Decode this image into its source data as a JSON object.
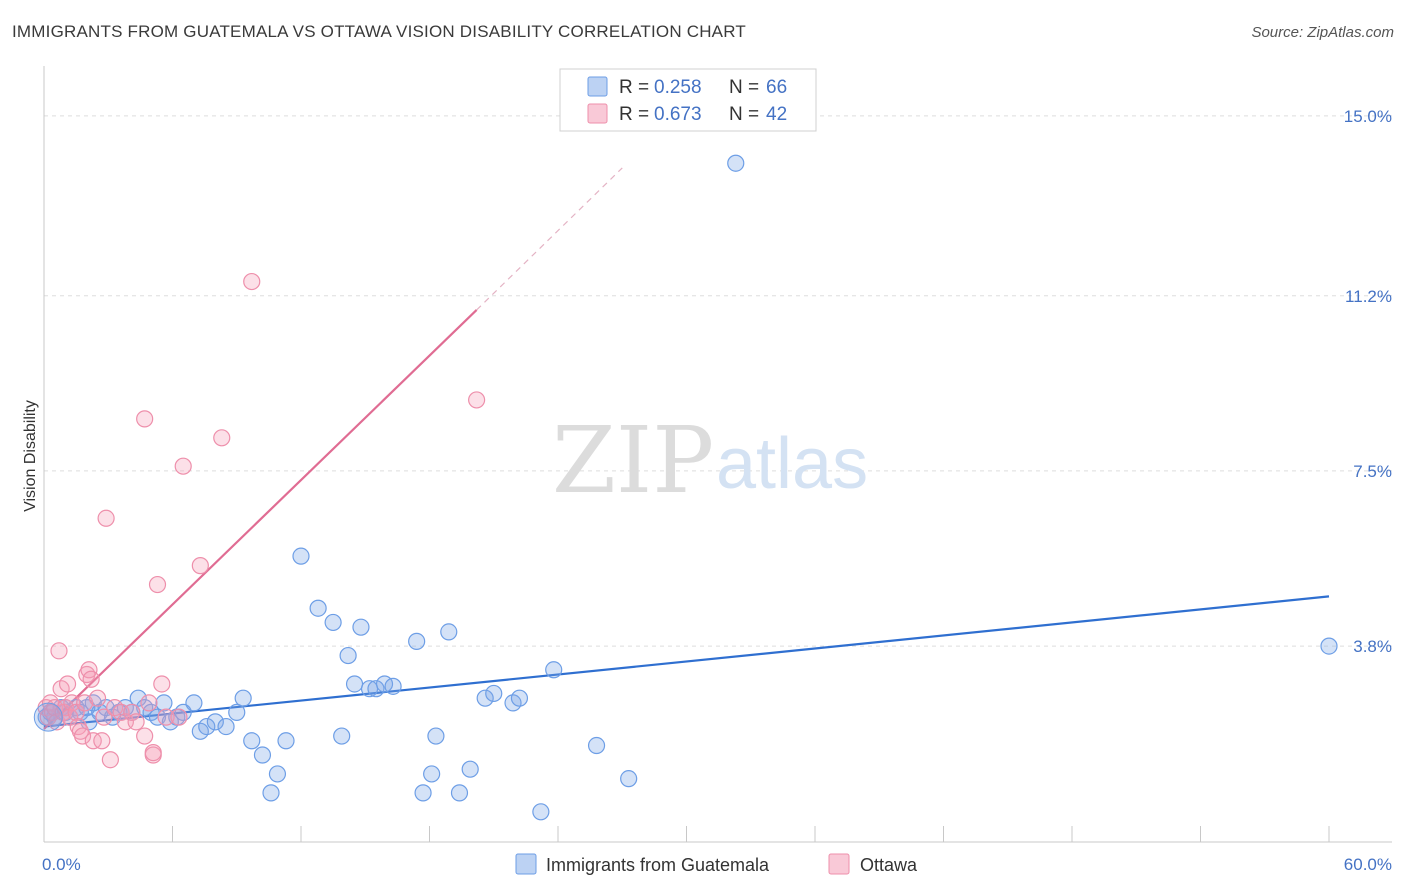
{
  "title": "IMMIGRANTS FROM GUATEMALA VS OTTAWA VISION DISABILITY CORRELATION CHART",
  "source": "Source: ZipAtlas.com",
  "watermark": {
    "zip": "ZIP",
    "atlas": "atlas"
  },
  "colors": {
    "blue": "#6d9ee6",
    "blue_fill": "rgba(120,165,230,0.32)",
    "blue_line": "#2f6fd0",
    "pink": "#ee8fab",
    "pink_fill": "rgba(245,160,185,0.32)",
    "pink_line": "#e06c93",
    "tick_text": "#4472c4"
  },
  "chart_data": {
    "type": "scatter",
    "title": "IMMIGRANTS FROM GUATEMALA VS OTTAWA VISION DISABILITY CORRELATION CHART",
    "xlabel": "",
    "ylabel": "Vision Disability",
    "xlim": [
      0,
      60
    ],
    "ylim": [
      0,
      15.8
    ],
    "x_tick_labels": [
      "0.0%",
      "60.0%"
    ],
    "y_ticks": [
      {
        "value": 3.8,
        "label": "3.8%"
      },
      {
        "value": 7.5,
        "label": "7.5%"
      },
      {
        "value": 11.2,
        "label": "11.2%"
      },
      {
        "value": 15.0,
        "label": "15.0%"
      }
    ],
    "grid": true,
    "legend_position": "bottom-center",
    "stats": [
      {
        "series": "Immigrants from Guatemala",
        "r_label": "R =",
        "r": "0.258",
        "n_label": "N =",
        "n": "66"
      },
      {
        "series": "Ottawa",
        "r_label": "R =",
        "r": "0.673",
        "n_label": "N =",
        "n": "42"
      }
    ],
    "series": [
      {
        "name": "Immigrants from Guatemala",
        "color": "blue",
        "trend": {
          "x0": 0,
          "y0": 2.1,
          "x1": 60,
          "y1": 4.85
        },
        "points": [
          [
            0.1,
            2.3
          ],
          [
            0.3,
            2.4
          ],
          [
            0.5,
            2.3
          ],
          [
            0.8,
            2.5
          ],
          [
            1.0,
            2.4
          ],
          [
            1.2,
            2.3
          ],
          [
            1.5,
            2.5
          ],
          [
            1.7,
            2.4
          ],
          [
            2.0,
            2.5
          ],
          [
            2.3,
            2.6
          ],
          [
            2.6,
            2.4
          ],
          [
            2.9,
            2.5
          ],
          [
            3.2,
            2.3
          ],
          [
            3.5,
            2.4
          ],
          [
            3.8,
            2.5
          ],
          [
            4.1,
            2.4
          ],
          [
            4.4,
            2.7
          ],
          [
            4.7,
            2.5
          ],
          [
            5.0,
            2.4
          ],
          [
            5.3,
            2.3
          ],
          [
            5.6,
            2.6
          ],
          [
            5.9,
            2.2
          ],
          [
            6.2,
            2.3
          ],
          [
            6.5,
            2.4
          ],
          [
            7.0,
            2.6
          ],
          [
            7.3,
            2.0
          ],
          [
            7.6,
            2.1
          ],
          [
            8.0,
            2.2
          ],
          [
            8.5,
            2.1
          ],
          [
            9.0,
            2.4
          ],
          [
            9.3,
            2.7
          ],
          [
            9.7,
            1.8
          ],
          [
            10.2,
            1.5
          ],
          [
            10.6,
            0.7
          ],
          [
            10.9,
            1.1
          ],
          [
            11.3,
            1.8
          ],
          [
            12.0,
            5.7
          ],
          [
            12.8,
            4.6
          ],
          [
            13.5,
            4.3
          ],
          [
            13.9,
            1.9
          ],
          [
            14.2,
            3.6
          ],
          [
            14.5,
            3.0
          ],
          [
            14.8,
            4.2
          ],
          [
            15.2,
            2.9
          ],
          [
            15.5,
            2.9
          ],
          [
            15.9,
            3.0
          ],
          [
            16.3,
            2.95
          ],
          [
            17.4,
            3.9
          ],
          [
            17.7,
            0.7
          ],
          [
            18.1,
            1.1
          ],
          [
            18.3,
            1.9
          ],
          [
            18.9,
            4.1
          ],
          [
            19.4,
            0.7
          ],
          [
            19.9,
            1.2
          ],
          [
            20.6,
            2.7
          ],
          [
            21.0,
            2.8
          ],
          [
            21.9,
            2.6
          ],
          [
            22.2,
            2.7
          ],
          [
            23.2,
            0.3
          ],
          [
            23.8,
            3.3
          ],
          [
            25.8,
            1.7
          ],
          [
            27.3,
            1.0
          ],
          [
            32.3,
            14.0
          ],
          [
            60.0,
            3.8
          ],
          [
            1.0,
            2.5
          ],
          [
            2.1,
            2.2
          ]
        ]
      },
      {
        "name": "Ottawa",
        "color": "pink",
        "trend": {
          "x0": 0,
          "y0": 2.05,
          "x1": 20.2,
          "y1": 10.9,
          "dash_x1": 27.0,
          "dash_y1": 13.9
        },
        "points": [
          [
            0.1,
            2.5
          ],
          [
            0.2,
            2.3
          ],
          [
            0.3,
            2.6
          ],
          [
            0.4,
            2.4
          ],
          [
            0.5,
            2.5
          ],
          [
            0.6,
            2.2
          ],
          [
            0.7,
            3.7
          ],
          [
            0.8,
            2.9
          ],
          [
            0.9,
            2.4
          ],
          [
            1.0,
            2.5
          ],
          [
            1.1,
            3.0
          ],
          [
            1.2,
            2.3
          ],
          [
            1.3,
            2.6
          ],
          [
            1.5,
            2.4
          ],
          [
            1.6,
            2.1
          ],
          [
            1.7,
            2.0
          ],
          [
            1.8,
            1.9
          ],
          [
            1.9,
            2.6
          ],
          [
            2.0,
            3.2
          ],
          [
            2.1,
            3.3
          ],
          [
            2.2,
            3.1
          ],
          [
            2.3,
            1.8
          ],
          [
            2.5,
            2.7
          ],
          [
            2.7,
            1.8
          ],
          [
            2.8,
            2.3
          ],
          [
            2.9,
            6.5
          ],
          [
            3.1,
            1.4
          ],
          [
            3.3,
            2.5
          ],
          [
            3.6,
            2.4
          ],
          [
            3.8,
            2.2
          ],
          [
            4.1,
            2.4
          ],
          [
            4.3,
            2.2
          ],
          [
            4.7,
            8.6
          ],
          [
            4.9,
            2.6
          ],
          [
            5.1,
            1.5
          ],
          [
            5.3,
            5.1
          ],
          [
            5.5,
            3.0
          ],
          [
            5.7,
            2.3
          ],
          [
            6.5,
            7.6
          ],
          [
            7.3,
            5.5
          ],
          [
            8.3,
            8.2
          ],
          [
            9.7,
            11.5
          ]
        ],
        "extra_points": [
          [
            20.2,
            9.0
          ],
          [
            4.7,
            1.9
          ],
          [
            5.1,
            1.55
          ],
          [
            6.3,
            2.3
          ]
        ]
      }
    ]
  },
  "legend": [
    {
      "label": "Immigrants from Guatemala",
      "color": "blue"
    },
    {
      "label": "Ottawa",
      "color": "pink"
    }
  ]
}
